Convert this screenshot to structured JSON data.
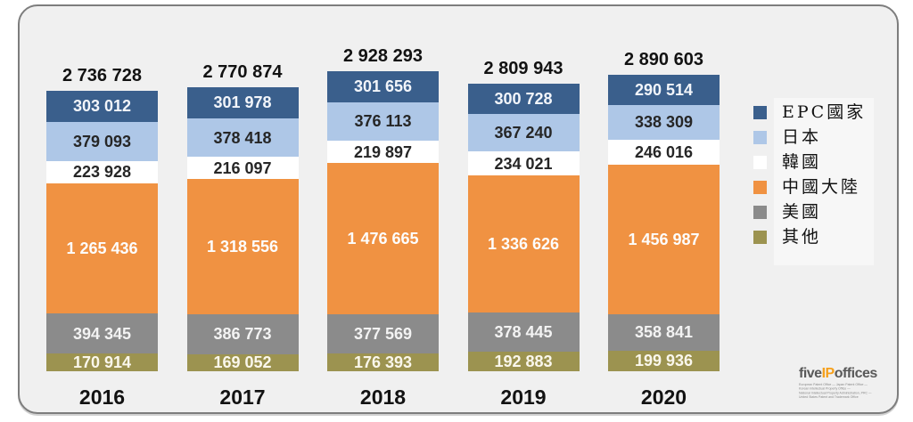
{
  "chart_data": {
    "type": "bar",
    "subtype": "stacked",
    "title": "",
    "xlabel": "",
    "ylabel": "",
    "grid": false,
    "legend_position": "right",
    "number_format": "space-thousands",
    "categories": [
      "2016",
      "2017",
      "2018",
      "2019",
      "2020"
    ],
    "totals": [
      2736728,
      2770874,
      2928293,
      2809943,
      2890603
    ],
    "series": [
      {
        "key": "epc",
        "name": "EPC國家",
        "color": "#3a5f8c",
        "text_color": "#f2f5fa",
        "values": [
          303012,
          301978,
          301656,
          300728,
          290514
        ]
      },
      {
        "key": "japan",
        "name": "日本",
        "color": "#aec7e7",
        "text_color": "#262626",
        "values": [
          379093,
          378418,
          376113,
          367240,
          338309
        ]
      },
      {
        "key": "korea",
        "name": "韓國",
        "color": "#ffffff",
        "text_color": "#262626",
        "values": [
          223928,
          216097,
          219897,
          234021,
          246016
        ]
      },
      {
        "key": "china",
        "name": "中國大陸",
        "color": "#f09242",
        "text_color": "#fdfdfd",
        "values": [
          1265436,
          1318556,
          1476665,
          1336626,
          1456987
        ]
      },
      {
        "key": "usa",
        "name": "美國",
        "color": "#8b8b8b",
        "text_color": "#f3f3f3",
        "values": [
          394345,
          386773,
          377569,
          378445,
          358841
        ]
      },
      {
        "key": "other",
        "name": "其他",
        "color": "#9c9350",
        "text_color": "#faf7ec",
        "values": [
          170914,
          169052,
          176393,
          192883,
          199936
        ]
      }
    ]
  },
  "logo": {
    "word_five": "five",
    "word_ip": "IP",
    "word_offices": "offices",
    "sublines": [
      "European Patent Office — Japan Patent Office —",
      "Korean Intellectual Property Office —",
      "National Intellectual Property Administration, PRC —",
      "United States Patent and Trademark Office"
    ]
  }
}
